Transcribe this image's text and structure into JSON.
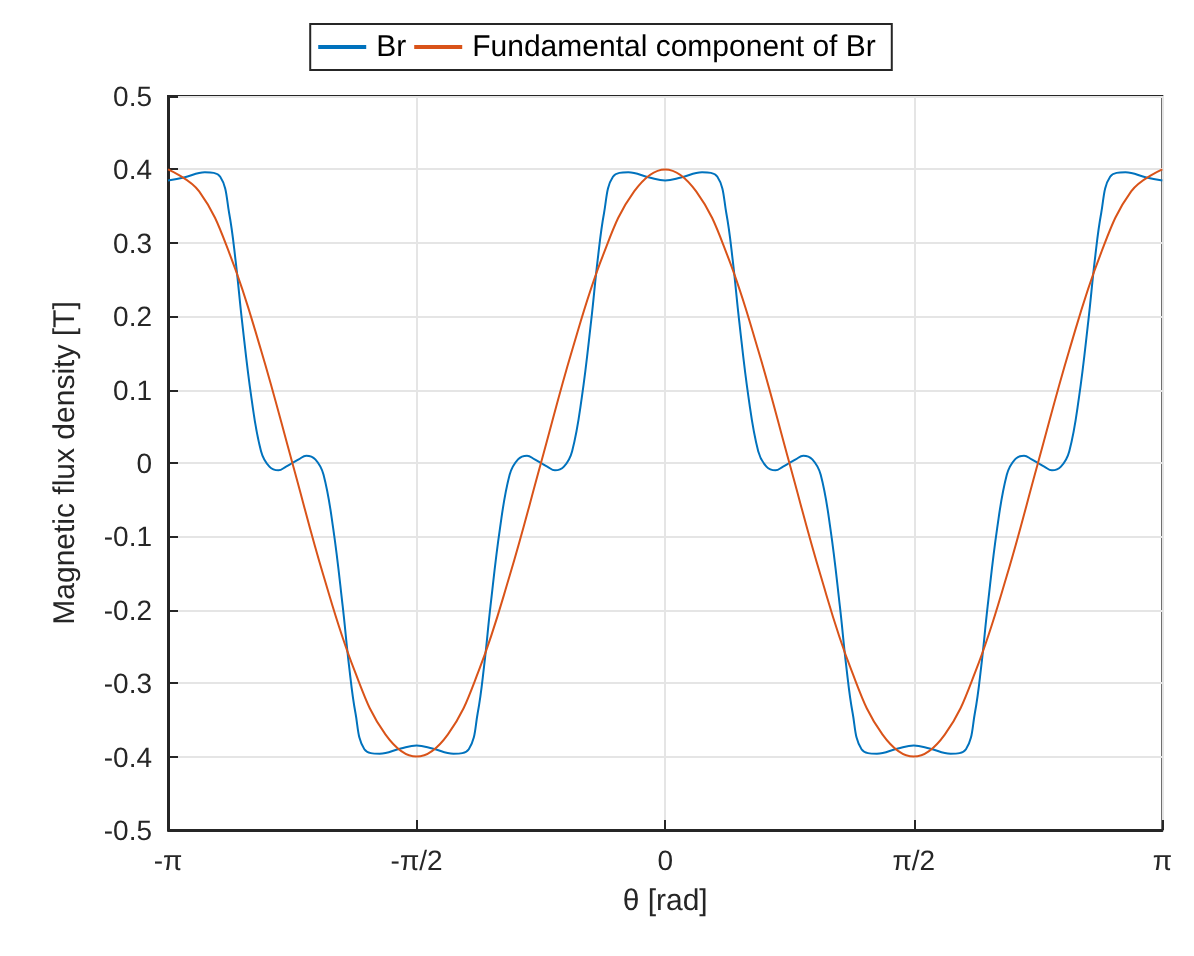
{
  "chart_data": {
    "type": "line",
    "xlabel": "θ [rad]",
    "ylabel": "Magnetic flux density [T]",
    "xlim": [
      -3.142,
      3.142
    ],
    "xticks": [
      {
        "value": -3.142,
        "label": "-π"
      },
      {
        "value": -1.571,
        "label": "-π/2"
      },
      {
        "value": 0,
        "label": "0"
      },
      {
        "value": 1.571,
        "label": "π/2"
      },
      {
        "value": 3.142,
        "label": "π"
      }
    ],
    "ylim": [
      -0.5,
      0.5
    ],
    "yticks": [
      -0.5,
      -0.4,
      -0.3,
      -0.2,
      -0.1,
      0,
      0.1,
      0.2,
      0.3,
      0.4,
      0.5
    ],
    "grid": true,
    "legend": "top",
    "marker": "none",
    "line_style": "solid",
    "series": [
      {
        "name": "Br",
        "color": "#0072bd",
        "x": [
          -3.142,
          -3.042,
          -2.909,
          -2.812,
          -2.756,
          -2.715,
          -2.675,
          -2.615,
          -2.554,
          -2.501,
          -2.444,
          -2.396,
          -2.356,
          -2.316,
          -2.268,
          -2.211,
          -2.159,
          -2.098,
          -2.038,
          -1.998,
          -1.957,
          -1.901,
          -1.804,
          -1.671,
          -1.571,
          -1.471,
          -1.338,
          -1.241,
          -1.185,
          -1.144,
          -1.104,
          -1.044,
          -0.983,
          -0.93,
          -0.873,
          -0.825,
          -0.785,
          -0.745,
          -0.697,
          -0.64,
          -0.588,
          -0.527,
          -0.467,
          -0.427,
          -0.386,
          -0.33,
          -0.233,
          -0.1,
          0,
          0.1,
          0.233,
          0.33,
          0.386,
          0.427,
          0.467,
          0.527,
          0.588,
          0.64,
          0.697,
          0.745,
          0.785,
          0.825,
          0.873,
          0.93,
          0.983,
          1.044,
          1.104,
          1.144,
          1.185,
          1.241,
          1.338,
          1.471,
          1.571,
          1.671,
          1.804,
          1.901,
          1.957,
          1.998,
          2.038,
          2.098,
          2.159,
          2.211,
          2.268,
          2.316,
          2.356,
          2.396,
          2.444,
          2.501,
          2.554,
          2.615,
          2.675,
          2.715,
          2.756,
          2.812,
          2.909,
          3.042,
          3.142
        ],
        "values": [
          0.385,
          0.389,
          0.396,
          0.39,
          0.341,
          0.276,
          0.195,
          0.089,
          0.016,
          -0.005,
          -0.01,
          -0.005,
          0,
          0.005,
          0.01,
          0.005,
          -0.016,
          -0.089,
          -0.195,
          -0.276,
          -0.341,
          -0.39,
          -0.396,
          -0.389,
          -0.385,
          -0.389,
          -0.396,
          -0.39,
          -0.341,
          -0.276,
          -0.195,
          -0.089,
          -0.016,
          0.005,
          0.01,
          0.005,
          0,
          -0.005,
          -0.01,
          -0.005,
          0.016,
          0.089,
          0.195,
          0.276,
          0.341,
          0.39,
          0.396,
          0.389,
          0.385,
          0.389,
          0.396,
          0.39,
          0.341,
          0.276,
          0.195,
          0.089,
          0.016,
          -0.005,
          -0.01,
          -0.005,
          0,
          0.005,
          0.01,
          0.005,
          -0.016,
          -0.089,
          -0.195,
          -0.276,
          -0.341,
          -0.39,
          -0.396,
          -0.389,
          -0.385,
          -0.389,
          -0.396,
          -0.39,
          -0.341,
          -0.276,
          -0.195,
          -0.089,
          -0.016,
          0.005,
          0.01,
          0.005,
          0,
          -0.005,
          -0.01,
          -0.005,
          0.016,
          0.089,
          0.195,
          0.276,
          0.341,
          0.39,
          0.396,
          0.389,
          0.385
        ]
      },
      {
        "name": "Fundamental component of Br",
        "color": "#d95319",
        "x": [
          -3.142,
          -2.945,
          -2.749,
          -2.553,
          -2.356,
          -2.16,
          -1.963,
          -1.767,
          -1.571,
          -1.374,
          -1.178,
          -0.982,
          -0.785,
          -0.589,
          -0.393,
          -0.196,
          0,
          0.196,
          0.393,
          0.589,
          0.785,
          0.982,
          1.178,
          1.374,
          1.571,
          1.767,
          1.963,
          2.16,
          2.356,
          2.553,
          2.749,
          2.945,
          3.142
        ],
        "values": [
          0.4,
          0.37,
          0.283,
          0.153,
          0,
          -0.153,
          -0.283,
          -0.37,
          -0.4,
          -0.37,
          -0.283,
          -0.153,
          0,
          0.153,
          0.283,
          0.37,
          0.4,
          0.37,
          0.283,
          0.153,
          0,
          -0.153,
          -0.283,
          -0.37,
          -0.4,
          -0.37,
          -0.283,
          -0.153,
          0,
          0.153,
          0.283,
          0.37,
          0.4
        ]
      }
    ]
  }
}
